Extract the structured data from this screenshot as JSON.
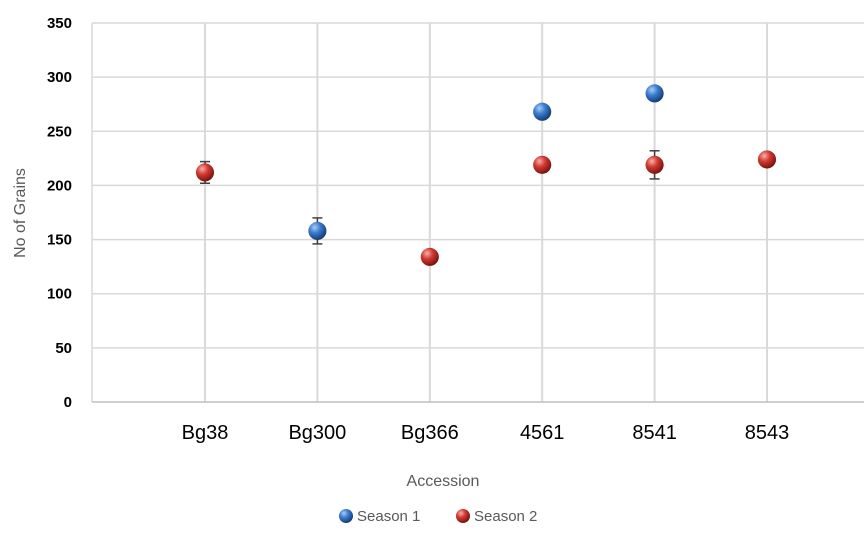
{
  "chart_data": {
    "type": "scatter",
    "xlabel": "Accession",
    "ylabel": "No of Grains",
    "categories": [
      "Bg38",
      "Bg300",
      "Bg366",
      "4561",
      "8541",
      "8543"
    ],
    "ylim": [
      0,
      350
    ],
    "yticks": [
      0,
      50,
      100,
      150,
      200,
      250,
      300,
      350
    ],
    "grid": {
      "vertical": true,
      "horizontal": true
    },
    "legend_position": "bottom",
    "series": [
      {
        "name": "Season 1",
        "color": "#2f6fc4",
        "points": [
          {
            "x": "Bg300",
            "y": 158,
            "err": 12
          },
          {
            "x": "4561",
            "y": 268
          },
          {
            "x": "8541",
            "y": 285
          }
        ]
      },
      {
        "name": "Season 2",
        "color": "#d63030",
        "points": [
          {
            "x": "Bg38",
            "y": 212,
            "err": 10
          },
          {
            "x": "Bg366",
            "y": 134
          },
          {
            "x": "4561",
            "y": 219
          },
          {
            "x": "8541",
            "y": 219,
            "err": 13
          },
          {
            "x": "8543",
            "y": 224
          }
        ]
      }
    ]
  }
}
